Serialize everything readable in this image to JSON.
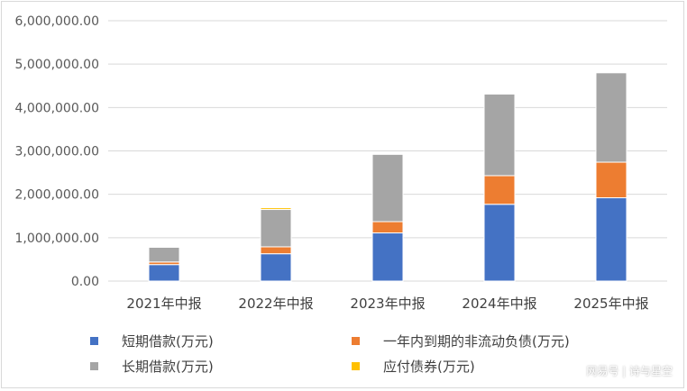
{
  "chart_data": {
    "type": "bar",
    "stacked": true,
    "categories": [
      "2021年中报",
      "2022年中报",
      "2023年中报",
      "2024年中报",
      "2025年中报"
    ],
    "series": [
      {
        "name": "短期借款(万元)",
        "color": "#4472c4",
        "values": [
          380000,
          630000,
          1110000,
          1770000,
          1920000
        ]
      },
      {
        "name": "一年内到期的非流动负债(万元)",
        "color": "#ed7d31",
        "values": [
          60000,
          160000,
          260000,
          660000,
          820000
        ]
      },
      {
        "name": "长期借款(万元)",
        "color": "#a5a5a5",
        "values": [
          340000,
          860000,
          1550000,
          1880000,
          2060000
        ]
      },
      {
        "name": "应付债券(万元)",
        "color": "#ffc000",
        "values": [
          20000,
          40000,
          0,
          0,
          0
        ]
      }
    ],
    "yticks": [
      "0.00",
      "1,000,000.00",
      "2,000,000.00",
      "3,000,000.00",
      "4,000,000.00",
      "5,000,000.00",
      "6,000,000.00"
    ],
    "ylim": [
      0,
      6000000
    ],
    "grid": true,
    "legend_position": "bottom"
  },
  "watermark": "网易号 | 诗与星空"
}
